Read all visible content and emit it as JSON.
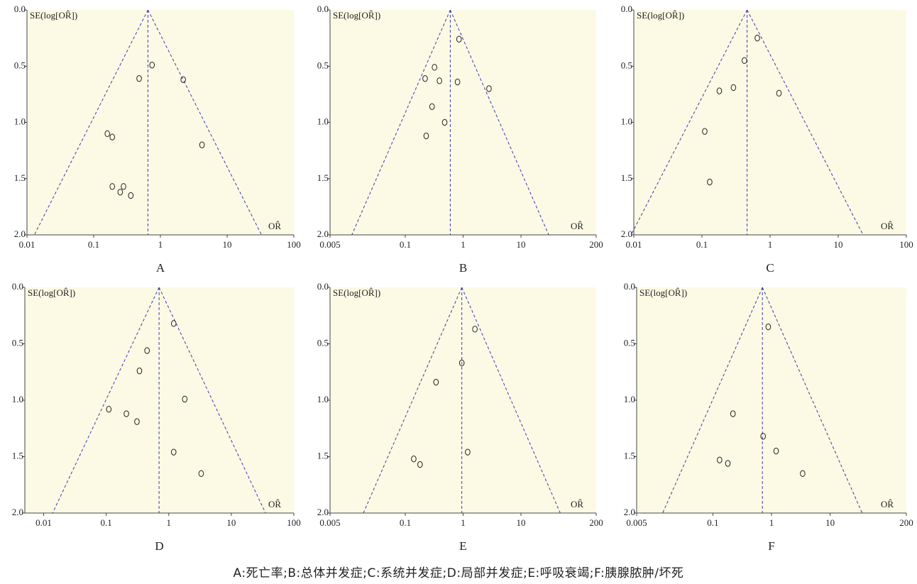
{
  "colors": {
    "plot_background": "#fcfae4",
    "funnel": "#3a3ab8",
    "axis": "#444444",
    "marker": "#222222"
  },
  "caption": "A:死亡率;B:总体并发症;C:系统并发症;D:局部并发症;E:呼吸衰竭;F:胰腺脓肿/坏死",
  "chart_data": [
    {
      "type": "scatter",
      "panel_label": "A",
      "ylabel": "SE(log[OR̂])",
      "xlabel": "OR̂",
      "xscale": "log",
      "xlim": [
        0.01,
        100
      ],
      "ylim": [
        0,
        2
      ],
      "x_ticks": [
        0.01,
        0.1,
        1,
        10,
        100
      ],
      "x_tick_labels": [
        "0.01",
        "0.1",
        "1",
        "10",
        "100"
      ],
      "y_ticks": [
        0,
        0.5,
        1,
        1.5,
        2
      ],
      "y_tick_labels": [
        "0.0",
        "0.5",
        "1.0",
        "1.5",
        "2.0"
      ],
      "pooled_or": 0.65,
      "points": [
        {
          "x": 0.48,
          "y": 0.61
        },
        {
          "x": 0.75,
          "y": 0.49
        },
        {
          "x": 2.2,
          "y": 0.62
        },
        {
          "x": 0.16,
          "y": 1.1
        },
        {
          "x": 0.19,
          "y": 1.13
        },
        {
          "x": 4.2,
          "y": 1.2
        },
        {
          "x": 0.19,
          "y": 1.57
        },
        {
          "x": 0.25,
          "y": 1.62
        },
        {
          "x": 0.28,
          "y": 1.57
        },
        {
          "x": 0.36,
          "y": 1.65
        }
      ]
    },
    {
      "type": "scatter",
      "panel_label": "B",
      "ylabel": "SE(log[OR̂])",
      "xlabel": "OR̂",
      "xscale": "log",
      "xlim": [
        0.005,
        200
      ],
      "ylim": [
        0,
        2
      ],
      "x_ticks": [
        0.005,
        0.1,
        1,
        10,
        200
      ],
      "x_tick_labels": [
        "0.005",
        "0.1",
        "1",
        "10",
        "200"
      ],
      "y_ticks": [
        0,
        0.5,
        1,
        1.5,
        2
      ],
      "y_tick_labels": [
        "0.0",
        "0.5",
        "1.0",
        "1.5",
        "2.0"
      ],
      "pooled_or": 0.6,
      "points": [
        {
          "x": 0.85,
          "y": 0.26
        },
        {
          "x": 0.32,
          "y": 0.51
        },
        {
          "x": 0.22,
          "y": 0.61
        },
        {
          "x": 0.39,
          "y": 0.63
        },
        {
          "x": 0.8,
          "y": 0.64
        },
        {
          "x": 2.8,
          "y": 0.7
        },
        {
          "x": 0.29,
          "y": 0.86
        },
        {
          "x": 0.48,
          "y": 1.0
        },
        {
          "x": 0.23,
          "y": 1.12
        }
      ]
    },
    {
      "type": "scatter",
      "panel_label": "C",
      "ylabel": "SE(log[OR̂])",
      "xlabel": "OR̂",
      "xscale": "log",
      "xlim": [
        0.01,
        100
      ],
      "ylim": [
        0,
        2
      ],
      "x_ticks": [
        0.01,
        0.1,
        1,
        10,
        100
      ],
      "x_tick_labels": [
        "0.01",
        "0.1",
        "1",
        "10",
        "100"
      ],
      "y_ticks": [
        0,
        0.5,
        1,
        1.5,
        2
      ],
      "y_tick_labels": [
        "0.0",
        "0.5",
        "1.0",
        "1.5",
        "2.0"
      ],
      "pooled_or": 0.46,
      "points": [
        {
          "x": 0.65,
          "y": 0.25
        },
        {
          "x": 0.42,
          "y": 0.45
        },
        {
          "x": 0.29,
          "y": 0.69
        },
        {
          "x": 0.18,
          "y": 0.72
        },
        {
          "x": 1.35,
          "y": 0.74
        },
        {
          "x": 0.11,
          "y": 1.08
        },
        {
          "x": 0.13,
          "y": 1.53
        }
      ]
    },
    {
      "type": "scatter",
      "panel_label": "D",
      "ylabel": "SE(log[OR̂])",
      "xlabel": "OR̂",
      "xscale": "log",
      "xlim": [
        0.005,
        100
      ],
      "ylim": [
        0,
        2
      ],
      "x_ticks": [
        0.01,
        0.1,
        1,
        10,
        100
      ],
      "x_tick_labels": [
        "0.01",
        "0.1",
        "1",
        "10",
        "100"
      ],
      "y_ticks": [
        0,
        0.5,
        1,
        1.5,
        2
      ],
      "y_tick_labels": [
        "0.0",
        "0.5",
        "1.0",
        "1.5",
        "2.0"
      ],
      "pooled_or": 0.7,
      "points": [
        {
          "x": 1.2,
          "y": 0.32
        },
        {
          "x": 0.45,
          "y": 0.56
        },
        {
          "x": 0.34,
          "y": 0.74
        },
        {
          "x": 1.8,
          "y": 0.99
        },
        {
          "x": 0.11,
          "y": 1.08
        },
        {
          "x": 0.21,
          "y": 1.12
        },
        {
          "x": 0.31,
          "y": 1.19
        },
        {
          "x": 1.2,
          "y": 1.46
        },
        {
          "x": 3.3,
          "y": 1.65
        }
      ]
    },
    {
      "type": "scatter",
      "panel_label": "E",
      "ylabel": "SE(log[OR̂])",
      "xlabel": "OR̂",
      "xscale": "log",
      "xlim": [
        0.005,
        200
      ],
      "ylim": [
        0,
        2
      ],
      "x_ticks": [
        0.005,
        0.1,
        1,
        10,
        200
      ],
      "x_tick_labels": [
        "0.005",
        "0.1",
        "1",
        "10",
        "200"
      ],
      "y_ticks": [
        0,
        0.5,
        1,
        1.5,
        2
      ],
      "y_tick_labels": [
        "0.0",
        "0.5",
        "1.0",
        "1.5",
        "2.0"
      ],
      "pooled_or": 0.95,
      "points": [
        {
          "x": 1.6,
          "y": 0.37
        },
        {
          "x": 0.95,
          "y": 0.67
        },
        {
          "x": 0.34,
          "y": 0.84
        },
        {
          "x": 1.2,
          "y": 1.46
        },
        {
          "x": 0.14,
          "y": 1.52
        },
        {
          "x": 0.18,
          "y": 1.57
        }
      ]
    },
    {
      "type": "scatter",
      "panel_label": "F",
      "ylabel": "SE(log[OR̂])",
      "xlabel": "OR̂",
      "xscale": "log",
      "xlim": [
        0.005,
        200
      ],
      "ylim": [
        0,
        2
      ],
      "x_ticks": [
        0.005,
        0.1,
        1,
        10,
        200
      ],
      "x_tick_labels": [
        "0.005",
        "0.1",
        "1",
        "10",
        "200"
      ],
      "y_ticks": [
        0,
        0.5,
        1,
        1.5,
        2
      ],
      "y_tick_labels": [
        "0.0",
        "0.5",
        "1.0",
        "1.5",
        "2.0"
      ],
      "pooled_or": 0.7,
      "points": [
        {
          "x": 0.88,
          "y": 0.35
        },
        {
          "x": 0.22,
          "y": 1.12
        },
        {
          "x": 0.72,
          "y": 1.32
        },
        {
          "x": 1.2,
          "y": 1.45
        },
        {
          "x": 0.13,
          "y": 1.53
        },
        {
          "x": 0.18,
          "y": 1.56
        },
        {
          "x": 3.4,
          "y": 1.65
        }
      ]
    }
  ]
}
